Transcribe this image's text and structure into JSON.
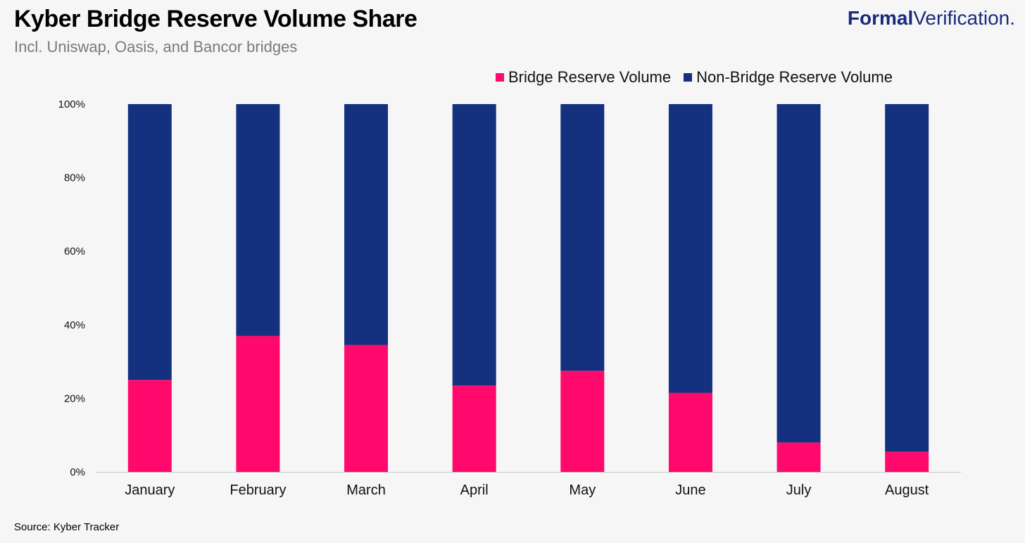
{
  "header": {
    "title": "Kyber Bridge Reserve Volume Share",
    "subtitle": "Incl. Uniswap, Oasis, and Bancor bridges"
  },
  "brand": {
    "bold_text": "Formal",
    "light_text": "Verification.",
    "color": "#1a2a7c"
  },
  "footer": {
    "source": "Source: Kyber Tracker"
  },
  "colors": {
    "bridge": "#ff0a6c",
    "non_bridge": "#14317f",
    "axis": "#c8c8c8",
    "text": "#111111"
  },
  "chart_data": {
    "type": "bar",
    "stacked": true,
    "percent_stacked": true,
    "title": "Kyber Bridge Reserve Volume Share",
    "subtitle": "Incl. Uniswap, Oasis, and Bancor bridges",
    "categories": [
      "January",
      "February",
      "March",
      "April",
      "May",
      "June",
      "July",
      "August"
    ],
    "series": [
      {
        "name": "Bridge Reserve Volume",
        "values": [
          25,
          37,
          34.5,
          23.5,
          27.5,
          21.5,
          8,
          5.5
        ]
      },
      {
        "name": "Non-Bridge Reserve Volume",
        "values": [
          75,
          63,
          65.5,
          76.5,
          72.5,
          78.5,
          92,
          94.5
        ]
      }
    ],
    "ylim": [
      0,
      100
    ],
    "yticks": [
      "0%",
      "20%",
      "40%",
      "60%",
      "80%",
      "100%"
    ],
    "ytick_values": [
      0,
      20,
      40,
      60,
      80,
      100
    ],
    "grid": false,
    "legend_position": "top-right",
    "xlabel": "",
    "ylabel": ""
  }
}
